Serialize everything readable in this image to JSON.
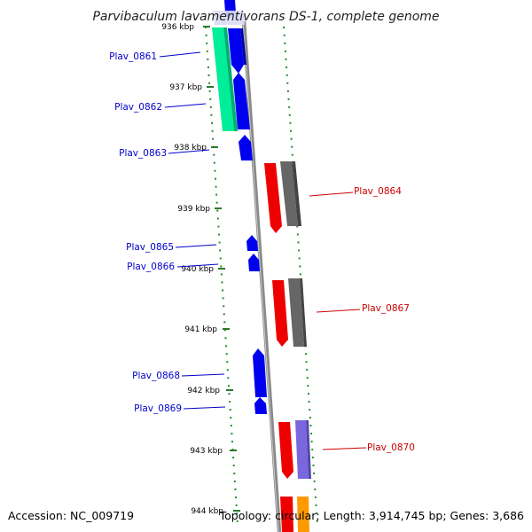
{
  "title": "Parvibaculum lavamentivorans DS-1, complete genome",
  "footer": {
    "accession": "Accession: NC_009719",
    "summary": "Topology: circular; Length: 3,914,745 bp; Genes: 3,686"
  },
  "colors": {
    "backbone": "#8a8a8a",
    "dots": "#2a8a2a",
    "label_left": "#0000cc",
    "label_right": "#cc0000",
    "gene_blue": "#0000ee",
    "gene_green": "#00ee99",
    "gene_red": "#ee0000",
    "gene_gray": "#666666",
    "gene_purple": "#7a66dd",
    "gene_orange": "#ff9900"
  },
  "ticks": [
    {
      "kbp": "936 kbp"
    },
    {
      "kbp": "937 kbp"
    },
    {
      "kbp": "938 kbp"
    },
    {
      "kbp": "939 kbp"
    },
    {
      "kbp": "940 kbp"
    },
    {
      "kbp": "941 kbp"
    },
    {
      "kbp": "942 kbp"
    },
    {
      "kbp": "943 kbp"
    },
    {
      "kbp": "944 kbp"
    }
  ],
  "gene_labels": [
    {
      "name": "Plav_0861",
      "strand": "left"
    },
    {
      "name": "Plav_0862",
      "strand": "left"
    },
    {
      "name": "Plav_0863",
      "strand": "left"
    },
    {
      "name": "Plav_0864",
      "strand": "right"
    },
    {
      "name": "Plav_0865",
      "strand": "left"
    },
    {
      "name": "Plav_0866",
      "strand": "left"
    },
    {
      "name": "Plav_0867",
      "strand": "right"
    },
    {
      "name": "Plav_0868",
      "strand": "left"
    },
    {
      "name": "Plav_0869",
      "strand": "left"
    },
    {
      "name": "Plav_0870",
      "strand": "right"
    }
  ]
}
